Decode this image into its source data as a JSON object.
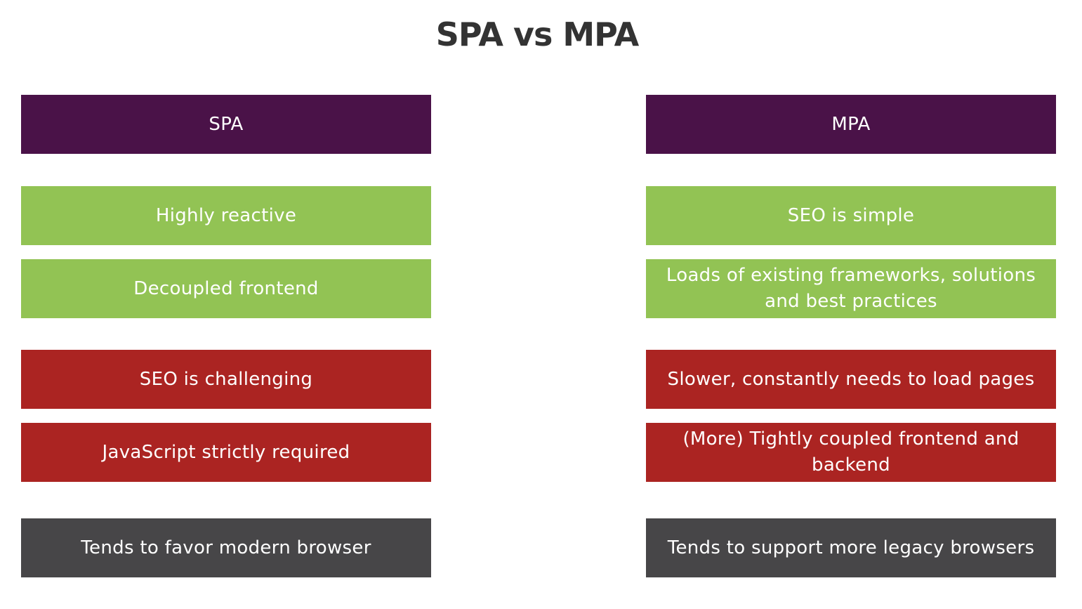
{
  "title": "SPA vs MPA",
  "colors": {
    "header": "#4a1248",
    "pro": "#92c354",
    "con": "#ab2422",
    "neutral": "#474648",
    "title_text": "#333333",
    "box_text": "#ffffff"
  },
  "spa": {
    "header": "SPA",
    "pros": [
      "Highly reactive",
      "Decoupled frontend"
    ],
    "cons": [
      "SEO is challenging",
      "JavaScript strictly required"
    ],
    "neutral": "Tends to favor modern browser"
  },
  "mpa": {
    "header": "MPA",
    "pros": [
      "SEO is simple",
      "Loads of existing frameworks, solutions and best practices"
    ],
    "cons": [
      "Slower, constantly needs to load pages",
      "(More) Tightly coupled frontend and backend"
    ],
    "neutral": "Tends to support more legacy browsers"
  }
}
